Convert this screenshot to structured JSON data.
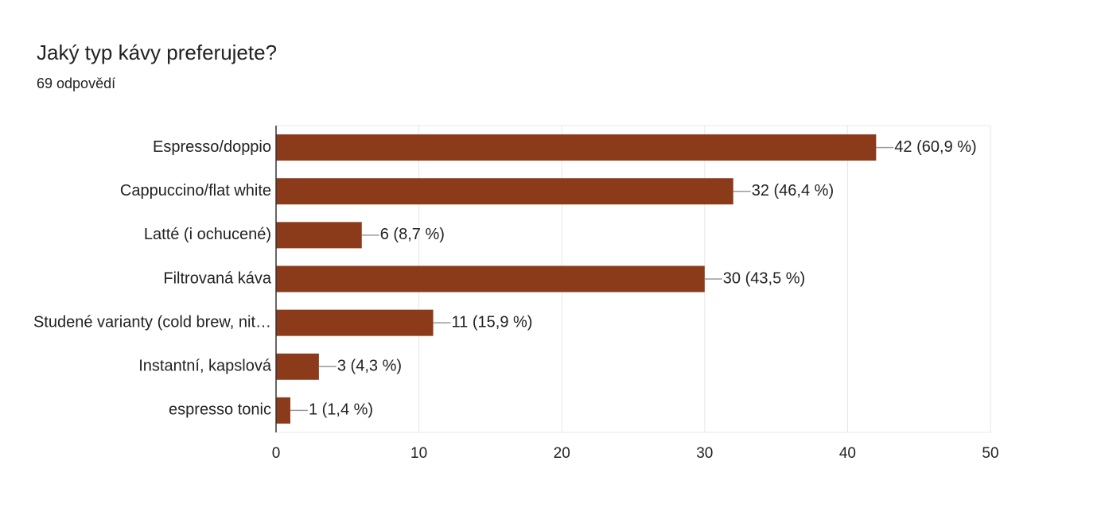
{
  "chart_data": {
    "type": "bar",
    "orientation": "horizontal",
    "title": "Jaký typ kávy preferujete?",
    "subtitle": "69 odpovědí",
    "categories": [
      "Espresso/doppio",
      "Cappuccino/flat white",
      "Latté (i ochucené)",
      "Filtrovaná káva",
      "Studené varianty (cold brew, nit…",
      "Instantní, kapslová",
      "espresso tonic"
    ],
    "values": [
      42,
      32,
      6,
      30,
      11,
      3,
      1
    ],
    "value_labels": [
      "42 (60,9 %)",
      "32 (46,4 %)",
      "6 (8,7 %)",
      "30 (43,5 %)",
      "11 (15,9 %)",
      "3 (4,3 %)",
      "1 (1,4 %)"
    ],
    "color": "#8b3a1a",
    "xlim": [
      0,
      50
    ],
    "xticks": [
      0,
      10,
      20,
      30,
      40,
      50
    ],
    "grid": true
  }
}
